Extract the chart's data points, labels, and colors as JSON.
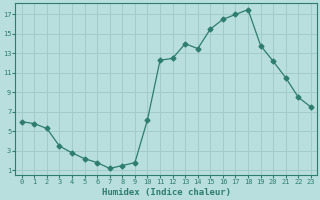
{
  "x": [
    0,
    1,
    2,
    3,
    4,
    5,
    6,
    7,
    8,
    9,
    10,
    11,
    12,
    13,
    14,
    15,
    16,
    17,
    18,
    19,
    20,
    21,
    22,
    23
  ],
  "y": [
    6.0,
    5.8,
    5.3,
    3.5,
    2.8,
    2.2,
    1.8,
    1.2,
    1.5,
    1.8,
    6.2,
    12.3,
    12.5,
    14.0,
    13.5,
    15.5,
    16.5,
    17.0,
    17.5,
    13.8,
    12.2,
    10.5,
    8.5,
    7.5
  ],
  "line_color": "#2e7d6e",
  "marker": "D",
  "marker_size": 2.5,
  "bg_color": "#b8dede",
  "grid_color": "#a0c8c8",
  "xlabel": "Humidex (Indice chaleur)",
  "xlim": [
    -0.5,
    23.5
  ],
  "ylim": [
    0.5,
    18.2
  ],
  "yticks": [
    1,
    3,
    5,
    7,
    9,
    11,
    13,
    15,
    17
  ],
  "xticks": [
    0,
    1,
    2,
    3,
    4,
    5,
    6,
    7,
    8,
    9,
    10,
    11,
    12,
    13,
    14,
    15,
    16,
    17,
    18,
    19,
    20,
    21,
    22,
    23
  ],
  "tick_color": "#2e7d6e",
  "label_color": "#2e7d6e",
  "axis_color": "#2e7d6e"
}
